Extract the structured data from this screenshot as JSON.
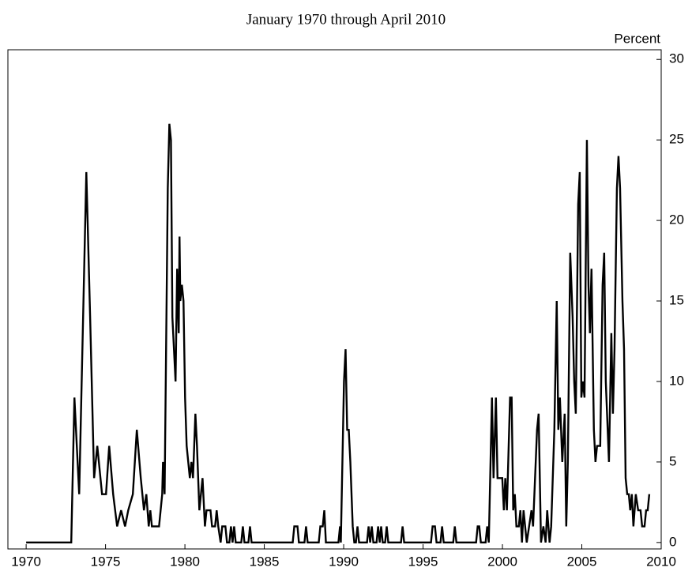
{
  "chart_data": {
    "type": "line",
    "title": "January 1970 through April 2010",
    "y_label": "Percent",
    "xlim": [
      1968.85,
      2010
    ],
    "xticks": [
      1970,
      1975,
      1980,
      1985,
      1990,
      1995,
      2000,
      2005,
      2010
    ],
    "ylim": [
      -0.4,
      30.6
    ],
    "yticks": [
      0,
      5,
      10,
      15,
      20,
      25,
      30
    ],
    "y_axis_side": "right",
    "grid": false,
    "series": [
      {
        "color": "#000000",
        "x": [
          1970.0,
          1972.84,
          1973.04,
          1973.34,
          1973.79,
          1974.03,
          1974.28,
          1974.48,
          1974.58,
          1974.78,
          1975.03,
          1975.23,
          1975.48,
          1975.73,
          1975.98,
          1976.23,
          1976.43,
          1976.72,
          1976.97,
          1977.22,
          1977.42,
          1977.57,
          1977.72,
          1977.82,
          1977.92,
          1978.37,
          1978.57,
          1978.62,
          1978.72,
          1978.92,
          1979.02,
          1979.12,
          1979.21,
          1979.31,
          1979.41,
          1979.51,
          1979.61,
          1979.66,
          1979.71,
          1979.81,
          1979.91,
          1980.01,
          1980.11,
          1980.21,
          1980.31,
          1980.41,
          1980.51,
          1980.66,
          1980.76,
          1980.91,
          1981.11,
          1981.26,
          1981.36,
          1981.61,
          1981.71,
          1981.9,
          1982.0,
          1982.1,
          1982.25,
          1982.35,
          1982.55,
          1982.65,
          1982.8,
          1982.9,
          1983.0,
          1983.1,
          1983.2,
          1983.55,
          1983.65,
          1983.75,
          1984.0,
          1984.1,
          1984.2,
          1986.79,
          1986.89,
          1987.09,
          1987.18,
          1987.53,
          1987.63,
          1987.73,
          1988.43,
          1988.53,
          1988.68,
          1988.78,
          1988.88,
          1989.67,
          1989.77,
          1989.82,
          1990.02,
          1990.12,
          1990.22,
          1990.32,
          1990.42,
          1990.57,
          1990.67,
          1990.77,
          1990.87,
          1990.97,
          1991.47,
          1991.57,
          1991.67,
          1991.77,
          1991.87,
          1992.07,
          1992.17,
          1992.27,
          1992.36,
          1992.46,
          1992.61,
          1992.71,
          1992.81,
          1993.61,
          1993.71,
          1993.81,
          1995.5,
          1995.6,
          1995.75,
          1995.85,
          1996.1,
          1996.2,
          1996.3,
          1996.9,
          1997.0,
          1997.1,
          1998.34,
          1998.44,
          1998.54,
          1998.64,
          1998.94,
          1999.04,
          1999.14,
          1999.34,
          1999.44,
          1999.59,
          1999.69,
          1999.99,
          2000.09,
          2000.18,
          2000.28,
          2000.48,
          2000.58,
          2000.68,
          2000.78,
          2000.88,
          2001.03,
          2001.13,
          2001.23,
          2001.33,
          2001.53,
          2001.83,
          2001.93,
          2002.18,
          2002.28,
          2002.43,
          2002.58,
          2002.72,
          2002.82,
          2002.97,
          2003.07,
          2003.27,
          2003.42,
          2003.52,
          2003.62,
          2003.77,
          2003.92,
          2004.02,
          2004.12,
          2004.27,
          2004.42,
          2004.52,
          2004.62,
          2004.77,
          2004.87,
          2004.97,
          2005.07,
          2005.17,
          2005.32,
          2005.42,
          2005.51,
          2005.61,
          2005.76,
          2005.86,
          2005.96,
          2006.16,
          2006.31,
          2006.41,
          2006.51,
          2006.71,
          2006.86,
          2006.96,
          2007.06,
          2007.21,
          2007.31,
          2007.41,
          2007.56,
          2007.66,
          2007.76,
          2007.86,
          2007.96,
          2008.05,
          2008.15,
          2008.25,
          2008.4,
          2008.55,
          2008.7,
          2008.8,
          2008.95,
          2009.05,
          2009.15,
          2009.25
        ],
        "values": [
          0,
          0,
          9,
          3,
          23,
          14,
          4,
          6,
          5,
          3,
          3,
          6,
          3,
          1,
          2,
          1,
          2,
          3,
          7,
          4,
          2,
          3,
          1,
          2,
          1,
          1,
          3,
          5,
          3,
          22,
          26,
          25,
          14,
          12,
          10,
          17,
          13,
          19,
          15,
          16,
          15,
          9,
          6,
          5,
          4,
          5,
          4,
          8,
          6,
          2,
          4,
          1,
          2,
          2,
          1,
          1,
          2,
          1,
          0,
          1,
          1,
          0,
          0,
          1,
          0,
          1,
          0,
          0,
          1,
          0,
          0,
          1,
          0,
          0,
          1,
          1,
          0,
          0,
          1,
          0,
          0,
          1,
          1,
          2,
          0,
          0,
          1,
          0,
          10,
          12,
          7,
          7,
          5,
          1,
          0,
          0,
          1,
          0,
          0,
          1,
          0,
          1,
          0,
          0,
          1,
          0,
          1,
          0,
          0,
          1,
          0,
          0,
          1,
          0,
          0,
          1,
          1,
          0,
          0,
          1,
          0,
          0,
          1,
          0,
          0,
          1,
          1,
          0,
          0,
          1,
          0,
          9,
          4,
          9,
          4,
          4,
          2,
          4,
          2,
          9,
          9,
          2,
          3,
          1,
          1,
          2,
          0,
          2,
          0,
          2,
          1,
          7,
          8,
          0,
          1,
          0,
          2,
          0,
          1,
          7,
          15,
          7,
          9,
          5,
          8,
          1,
          5,
          18,
          14,
          10,
          8,
          21,
          23,
          9,
          10,
          9,
          25,
          16,
          13,
          17,
          7,
          5,
          6,
          6,
          16,
          18,
          10,
          5,
          13,
          8,
          12,
          22,
          24,
          22,
          15,
          12,
          4,
          3,
          3,
          2,
          3,
          1,
          3,
          2,
          2,
          1,
          1,
          2,
          2,
          3
        ]
      }
    ]
  }
}
